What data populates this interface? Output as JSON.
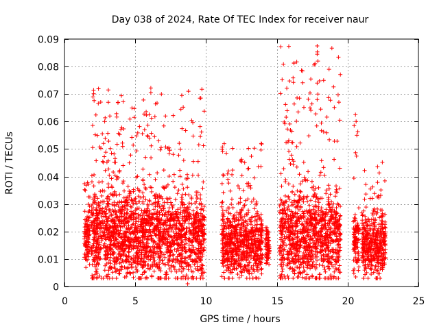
{
  "chart_data": {
    "type": "scatter",
    "title": "Day 038 of 2024, Rate Of TEC Index for receiver naur",
    "xlabel": "GPS time / hours",
    "ylabel": "ROTI / TECUs",
    "xlim": [
      0,
      25
    ],
    "ylim": [
      0,
      0.09
    ],
    "x_ticks": [
      "0",
      "5",
      "10",
      "15",
      "20",
      "25"
    ],
    "y_ticks": [
      "0",
      "0.01",
      "0.02",
      "0.03",
      "0.04",
      "0.05",
      "0.06",
      "0.07",
      "0.08",
      "0.09"
    ],
    "grid": true,
    "marker": "+",
    "marker_color": "#ff0000",
    "segments": [
      {
        "x_start": 1.4,
        "x_end": 1.8,
        "y_base": 0.017,
        "y_spread": 0.008,
        "y_peak": 0.038
      },
      {
        "x_start": 1.9,
        "x_end": 9.9,
        "y_base": 0.018,
        "y_spread": 0.012,
        "y_peak": 0.072
      },
      {
        "x_start": 11.1,
        "x_end": 14.0,
        "y_base": 0.015,
        "y_spread": 0.009,
        "y_peak": 0.052
      },
      {
        "x_start": 14.2,
        "x_end": 14.5,
        "y_base": 0.014,
        "y_spread": 0.005,
        "y_peak": 0.023
      },
      {
        "x_start": 15.2,
        "x_end": 19.5,
        "y_base": 0.018,
        "y_spread": 0.012,
        "y_peak": 0.088
      },
      {
        "x_start": 20.4,
        "x_end": 20.8,
        "y_base": 0.016,
        "y_spread": 0.008,
        "y_peak": 0.063
      },
      {
        "x_start": 21.0,
        "x_end": 22.7,
        "y_base": 0.015,
        "y_spread": 0.009,
        "y_peak": 0.045
      }
    ],
    "highlight_points": [
      {
        "x": 17.85,
        "y": 0.0875
      },
      {
        "x": 17.85,
        "y": 0.0845
      },
      {
        "x": 17.9,
        "y": 0.082
      },
      {
        "x": 17.85,
        "y": 0.074
      },
      {
        "x": 17.9,
        "y": 0.07
      },
      {
        "x": 17.85,
        "y": 0.068
      },
      {
        "x": 18.1,
        "y": 0.0645
      },
      {
        "x": 16.6,
        "y": 0.0685
      },
      {
        "x": 16.5,
        "y": 0.0635
      },
      {
        "x": 6.1,
        "y": 0.0722
      },
      {
        "x": 6.1,
        "y": 0.0705
      },
      {
        "x": 6.15,
        "y": 0.0612
      },
      {
        "x": 5.3,
        "y": 0.0582
      },
      {
        "x": 20.55,
        "y": 0.0625
      },
      {
        "x": 20.6,
        "y": 0.06
      },
      {
        "x": 20.65,
        "y": 0.055
      },
      {
        "x": 13.9,
        "y": 0.052
      },
      {
        "x": 8.7,
        "y": 0.001
      },
      {
        "x": 9.45,
        "y": 0.0405
      },
      {
        "x": 22.45,
        "y": 0.0452
      }
    ]
  }
}
